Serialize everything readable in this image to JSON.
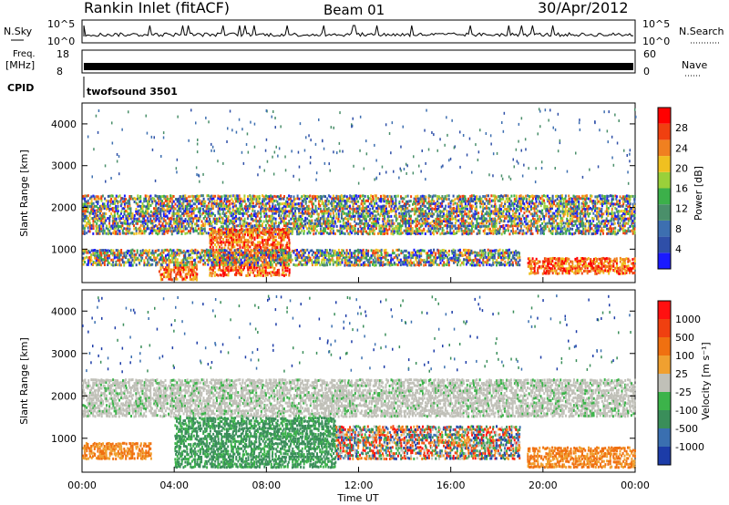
{
  "header": {
    "title": "Rankin Inlet (fitACF)",
    "beam": "Beam 01",
    "date": "30/Apr/2012"
  },
  "top_panels": {
    "nsky_label": "N.Sky",
    "nsky_ticks": [
      "10^5",
      "10^0"
    ],
    "nsearch_label": "N.Search",
    "nsearch_ticks": [
      "10^5",
      "10^0"
    ],
    "freq_label_1": "Freq.",
    "freq_label_2": "[MHz]",
    "freq_ticks": [
      "18",
      "8"
    ],
    "nave_label": "Nave",
    "nave_ticks": [
      "60",
      "0"
    ],
    "cpid_label": "CPID",
    "cpid_value": "twofsound 3501"
  },
  "colors": {
    "power_scale": [
      "#1a1aff",
      "#2f4fa8",
      "#3d6fb0",
      "#4a8f6a",
      "#3cb04a",
      "#9ad03a",
      "#f0c020",
      "#f08020",
      "#f04010",
      "#ff0000"
    ],
    "velocity_scale": [
      "#1c3ca8",
      "#3a6fb0",
      "#3a8e5a",
      "#3cb34a",
      "#c0c0b8",
      "#f0a030",
      "#f07010",
      "#f04010",
      "#ff1010"
    ]
  },
  "chart_data": [
    {
      "type": "heatmap",
      "panel": "power",
      "xlabel": "Time UT",
      "ylabel": "Slant Range [km]",
      "x_ticks": [
        "00:00",
        "04:00",
        "08:00",
        "12:00",
        "16:00",
        "20:00",
        "00:00"
      ],
      "y_ticks": [
        "1000",
        "2000",
        "3000",
        "4000"
      ],
      "ylim": [
        200,
        4500
      ],
      "colorbar_label": "Power [dB]",
      "colorbar_ticks": [
        "28",
        "24",
        "20",
        "16",
        "12",
        "8",
        "4"
      ],
      "bands": [
        {
          "t0": 0.0,
          "t1": 24.0,
          "r0": 1350,
          "r1": 2300,
          "level": "mixed"
        },
        {
          "t0": 5.5,
          "t1": 9.0,
          "r0": 350,
          "r1": 1500,
          "level": "high"
        },
        {
          "t0": 3.3,
          "t1": 5.0,
          "r0": 250,
          "r1": 600,
          "level": "high"
        },
        {
          "t0": 19.3,
          "t1": 24.0,
          "r0": 400,
          "r1": 800,
          "level": "high"
        },
        {
          "t0": 0.0,
          "t1": 19.0,
          "r0": 600,
          "r1": 1000,
          "level": "mixed"
        }
      ]
    },
    {
      "type": "heatmap",
      "panel": "velocity",
      "xlabel": "Time UT",
      "ylabel": "Slant Range [km]",
      "x_ticks": [
        "00:00",
        "04:00",
        "08:00",
        "12:00",
        "16:00",
        "20:00",
        "00:00"
      ],
      "y_ticks": [
        "1000",
        "2000",
        "3000",
        "4000"
      ],
      "ylim": [
        200,
        4500
      ],
      "colorbar_label": "Velocity [m s⁻¹]",
      "colorbar_ticks": [
        "1000",
        "500",
        "100",
        "25",
        "-25",
        "-100",
        "-500",
        "-1000"
      ],
      "bands": [
        {
          "t0": 0.0,
          "t1": 24.0,
          "r0": 1500,
          "r1": 2400,
          "level": "near-zero"
        },
        {
          "t0": 4.0,
          "t1": 11.0,
          "r0": 300,
          "r1": 1500,
          "level": "positive"
        },
        {
          "t0": 0.0,
          "t1": 3.0,
          "r0": 500,
          "r1": 900,
          "level": "negative"
        },
        {
          "t0": 19.3,
          "t1": 24.0,
          "r0": 300,
          "r1": 800,
          "level": "negative"
        },
        {
          "t0": 11.0,
          "t1": 19.0,
          "r0": 500,
          "r1": 1300,
          "level": "mixed"
        }
      ]
    }
  ]
}
